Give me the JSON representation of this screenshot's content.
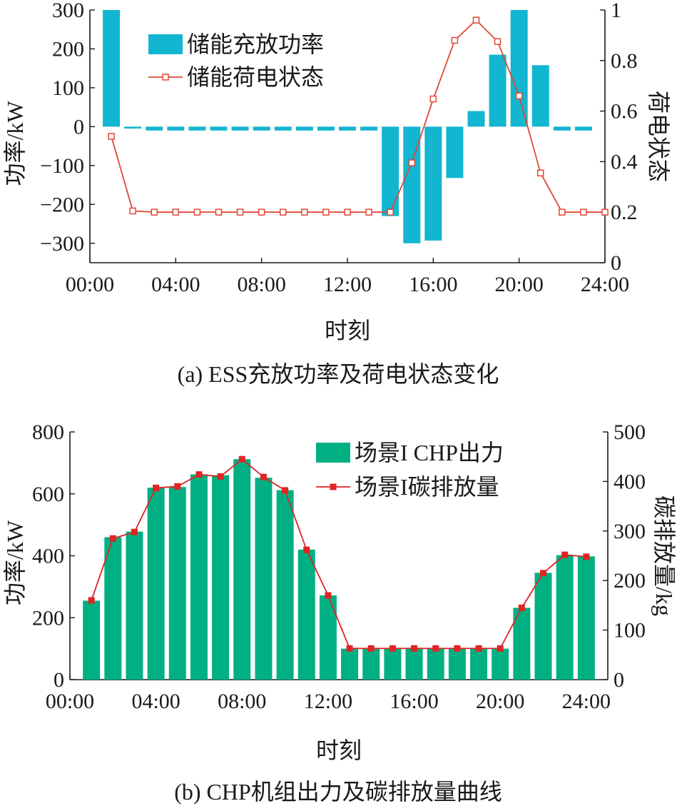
{
  "chart_data": [
    {
      "type": "bar",
      "title": "",
      "caption": "(a) ESS充放功率及荷电状态变化",
      "xlabel": "时刻",
      "ylabel": "功率/kW",
      "y2label": "荷电状态",
      "x_ticks": [
        "00:00",
        "04:00",
        "08:00",
        "12:00",
        "16:00",
        "20:00",
        "24:00"
      ],
      "y_ticks": [
        "300",
        "200",
        "100",
        "0",
        "−100",
        "−200",
        "−300"
      ],
      "y2_ticks": [
        "1",
        "0.8",
        "0.6",
        "0.4",
        "0.2",
        "0"
      ],
      "xlim": [
        0,
        24
      ],
      "ylim": [
        -350,
        300
      ],
      "y2lim": [
        0,
        1
      ],
      "legend_position": "top-left",
      "hours": [
        1,
        2,
        3,
        4,
        5,
        6,
        7,
        8,
        9,
        10,
        11,
        12,
        13,
        14,
        15,
        16,
        17,
        18,
        19,
        20,
        21,
        22,
        23,
        24
      ],
      "series": [
        {
          "name": "储能充放功率",
          "kind": "bar",
          "axis": "left",
          "color": "#12b6d0",
          "x": [
            1,
            2,
            3,
            4,
            5,
            6,
            7,
            8,
            9,
            10,
            11,
            12,
            13,
            14,
            15,
            16,
            17,
            18,
            19,
            20,
            21,
            22,
            23
          ],
          "values": [
            300,
            -5,
            -10,
            -10,
            -10,
            -10,
            -10,
            -10,
            -10,
            -10,
            -10,
            -10,
            -10,
            -230,
            -300,
            -293,
            -132,
            40,
            185,
            300,
            158,
            -10,
            -10
          ]
        },
        {
          "name": "储能荷电状态",
          "kind": "line",
          "axis": "right",
          "color": "#e04836",
          "marker": "open-square",
          "x": [
            1,
            2,
            3,
            4,
            5,
            6,
            7,
            8,
            9,
            10,
            11,
            12,
            13,
            14,
            15,
            16,
            17,
            18,
            19,
            20,
            21,
            22,
            23,
            24
          ],
          "values": [
            0.5,
            0.205,
            0.2,
            0.2,
            0.2,
            0.2,
            0.2,
            0.2,
            0.2,
            0.2,
            0.2,
            0.2,
            0.2,
            0.2,
            0.395,
            0.648,
            0.88,
            0.96,
            0.875,
            0.66,
            0.355,
            0.2,
            0.2,
            0.2
          ]
        }
      ]
    },
    {
      "type": "bar",
      "title": "",
      "caption": "(b) CHP机组出力及碳排放量曲线",
      "xlabel": "时刻",
      "ylabel": "功率/kW",
      "y2label": "碳排放量/kg",
      "x_ticks": [
        "00:00",
        "04:00",
        "08:00",
        "12:00",
        "16:00",
        "20:00",
        "24:00"
      ],
      "y_ticks": [
        "800",
        "600",
        "400",
        "200",
        "0"
      ],
      "y2_ticks": [
        "500",
        "400",
        "300",
        "200",
        "100",
        "0"
      ],
      "xlim": [
        0,
        25
      ],
      "ylim": [
        0,
        800
      ],
      "y2lim": [
        0,
        500
      ],
      "legend_position": "top-right",
      "series": [
        {
          "name": "场景I CHP出力",
          "kind": "bar",
          "axis": "left",
          "color": "#00b083",
          "x": [
            1,
            2,
            3,
            4,
            5,
            6,
            7,
            8,
            9,
            10,
            11,
            12,
            13,
            14,
            15,
            16,
            17,
            18,
            19,
            20,
            21,
            22,
            23,
            24
          ],
          "values": [
            255,
            460,
            478,
            620,
            622,
            663,
            660,
            712,
            652,
            612,
            420,
            272,
            100,
            100,
            100,
            100,
            100,
            100,
            100,
            100,
            232,
            345,
            402,
            398
          ]
        },
        {
          "name": "场景I碳排放量",
          "kind": "line",
          "axis": "right",
          "color": "#e02424",
          "marker": "filled-square",
          "x": [
            1,
            2,
            3,
            4,
            5,
            6,
            7,
            8,
            9,
            10,
            11,
            12,
            13,
            14,
            15,
            16,
            17,
            18,
            19,
            20,
            21,
            22,
            23,
            24
          ],
          "values": [
            160,
            285,
            298,
            387,
            390,
            414,
            410,
            445,
            409,
            382,
            262,
            170,
            63,
            63,
            63,
            63,
            63,
            63,
            63,
            63,
            145,
            215,
            252,
            248
          ]
        }
      ]
    }
  ]
}
